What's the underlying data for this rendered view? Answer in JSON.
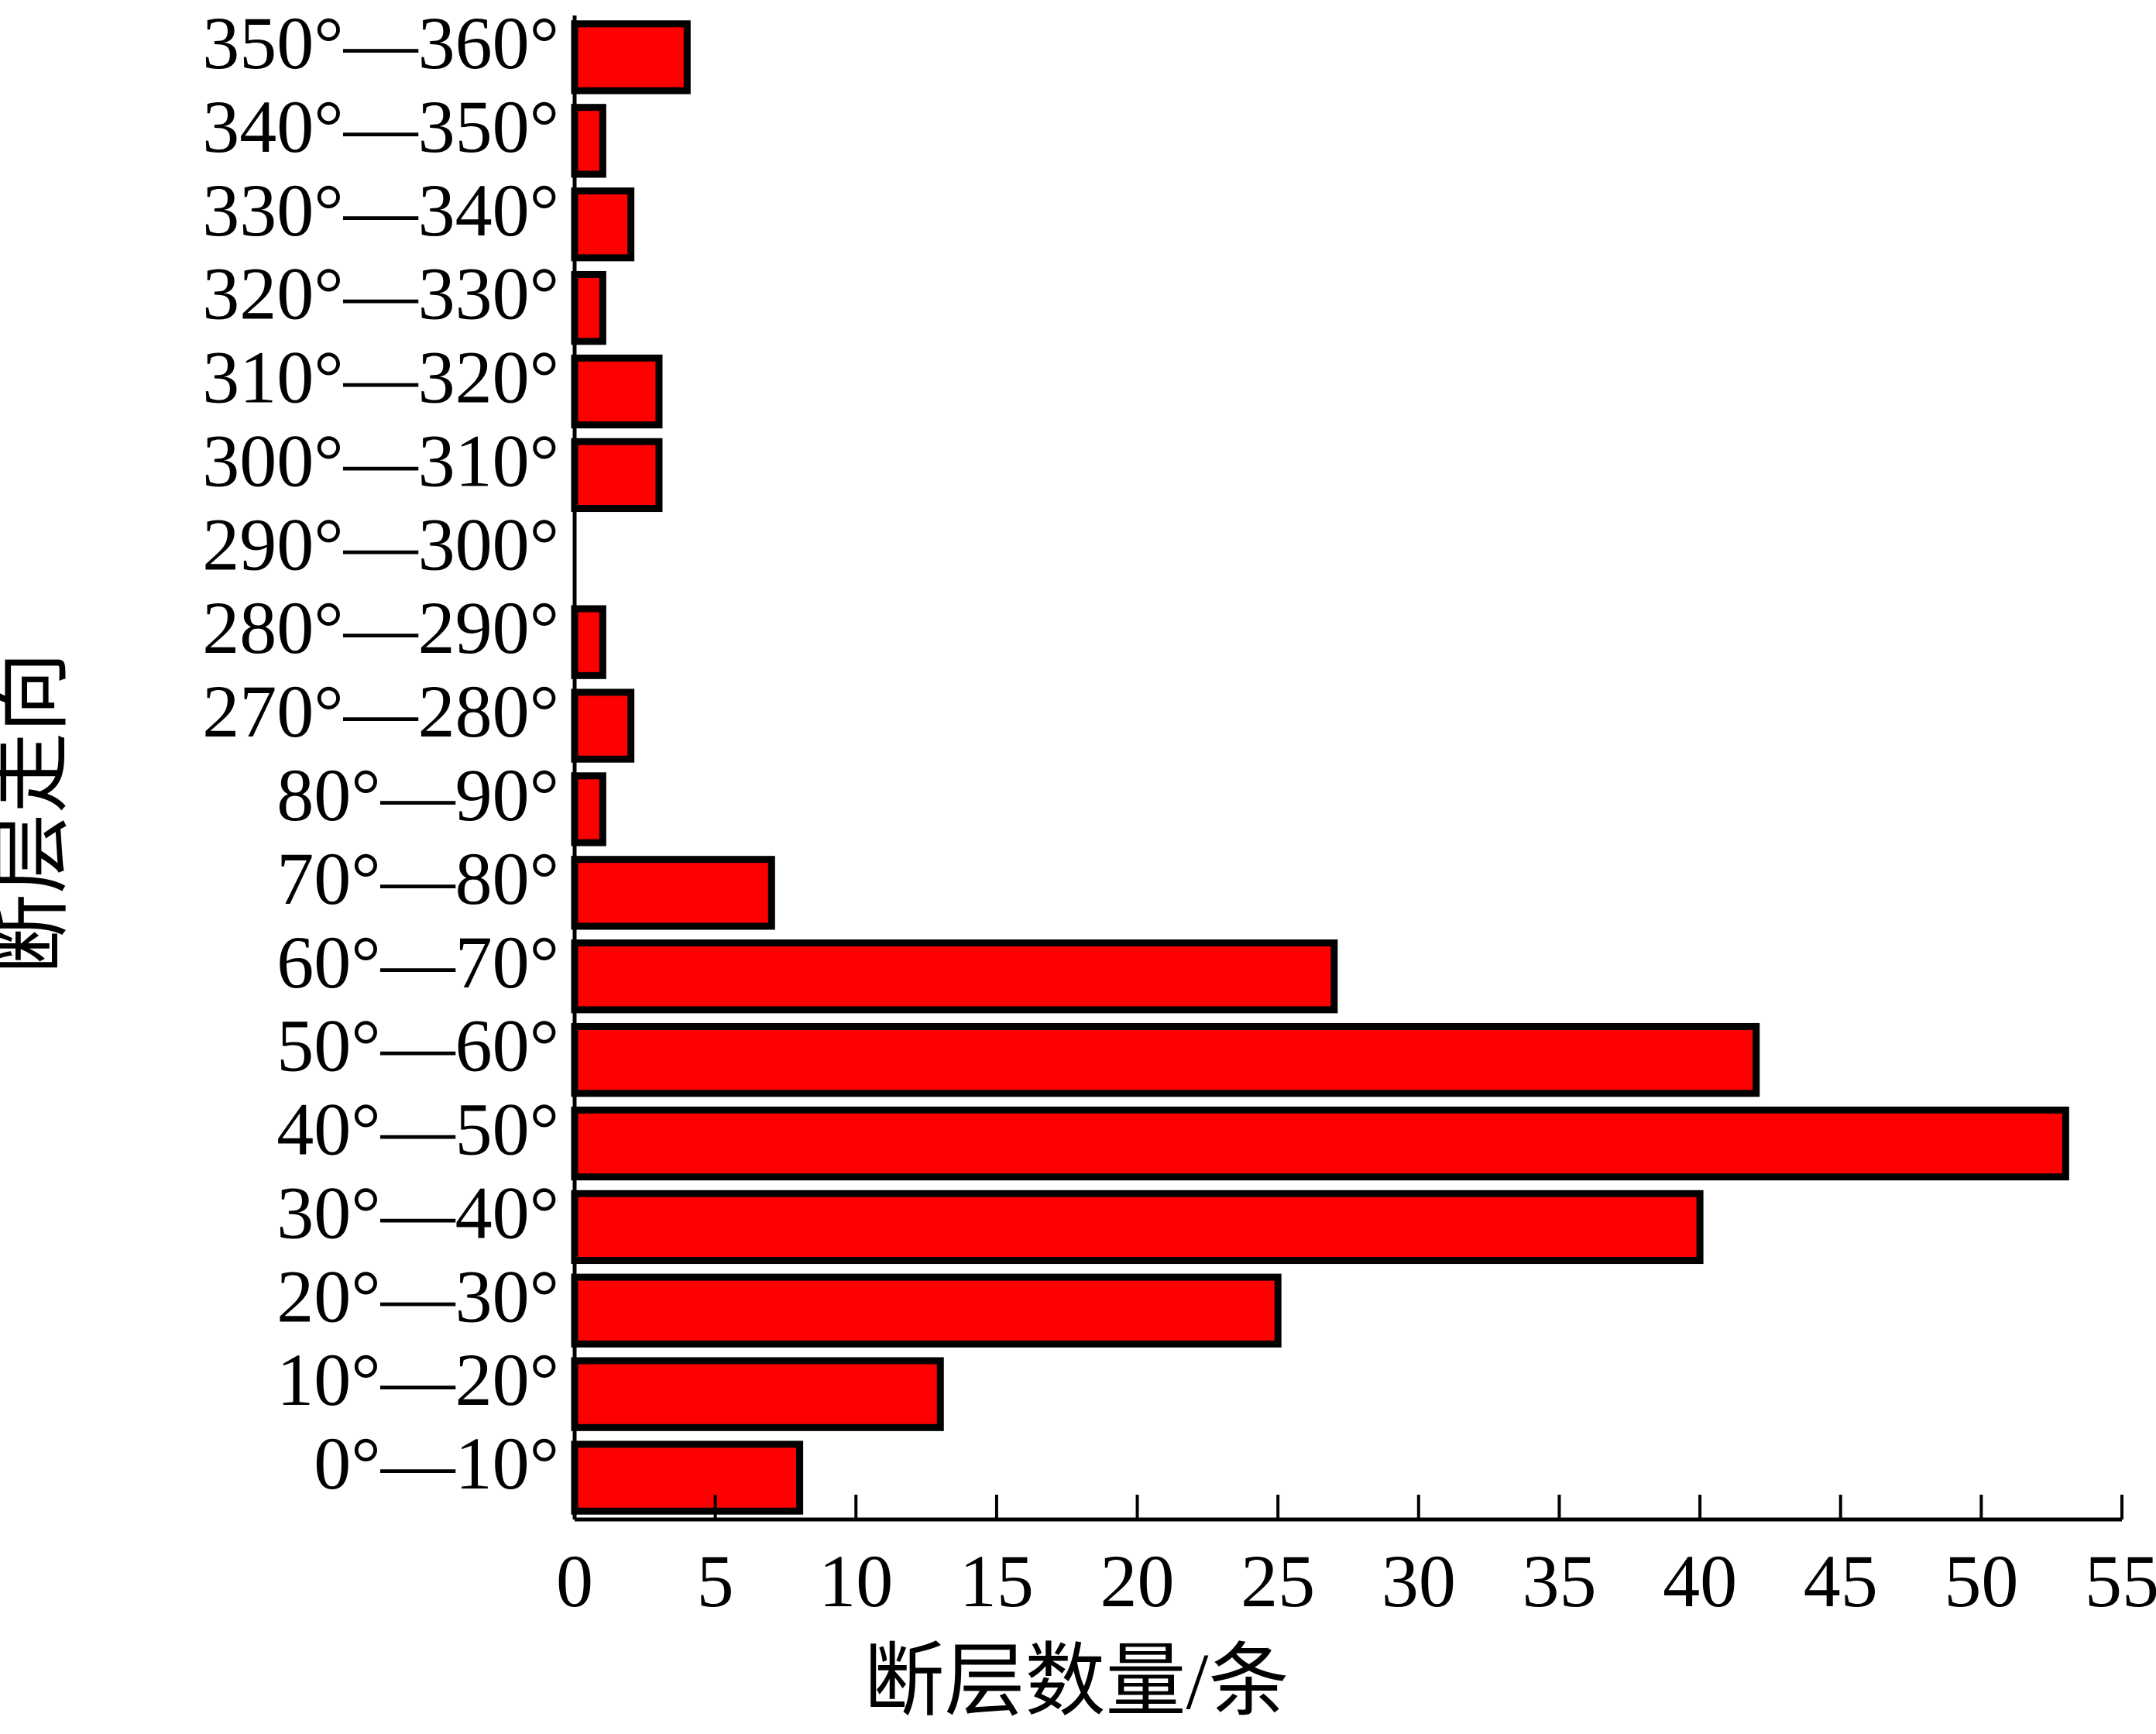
{
  "chart_data": {
    "type": "barh",
    "x_label": "断层数量/条",
    "y_label": "断层走向",
    "categories": [
      "0°—10°",
      "10°—20°",
      "20°—30°",
      "30°—40°",
      "40°—50°",
      "50°—60°",
      "60°—70°",
      "70°—80°",
      "80°—90°",
      "270°—280°",
      "280°—290°",
      "290°—300°",
      "300°—310°",
      "310°—320°",
      "320°—330°",
      "330°—340°",
      "340°—350°",
      "350°—360°"
    ],
    "values": [
      8,
      13,
      25,
      40,
      53,
      42,
      27,
      7,
      1,
      2,
      1,
      0,
      3,
      3,
      1,
      2,
      1,
      4
    ],
    "color": "#ff0000",
    "xlim": [
      0,
      55
    ],
    "xticks": [
      0,
      5,
      10,
      15,
      20,
      25,
      30,
      35,
      40,
      45,
      50,
      55
    ]
  }
}
